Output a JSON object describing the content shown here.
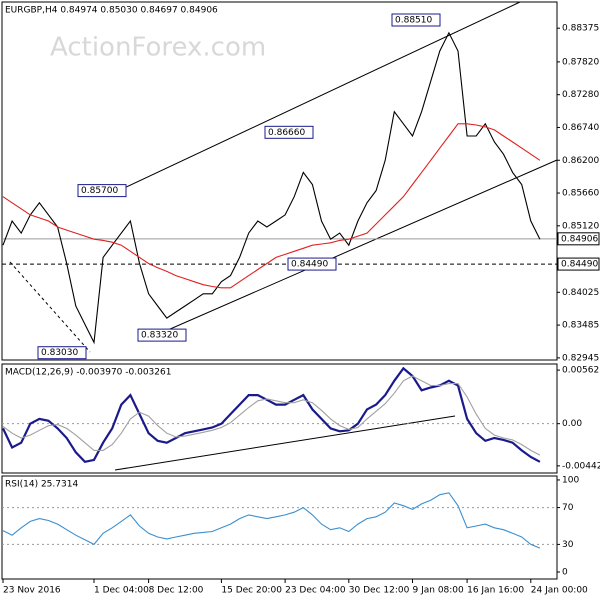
{
  "chart_data": [
    {
      "type": "line",
      "title": "EURGBP,H4  0.84974 0.85030 0.84697 0.84906",
      "watermark": "ActionForex.com",
      "series": [
        {
          "color": "#000000",
          "values": [
            0.848,
            0.852,
            0.85,
            0.853,
            0.855,
            0.853,
            0.851,
            0.845,
            0.838,
            0.835,
            0.832,
            0.846,
            0.848,
            0.85,
            0.852,
            0.845,
            0.84,
            0.838,
            0.836,
            0.837,
            0.838,
            0.839,
            0.84,
            0.84,
            0.842,
            0.843,
            0.846,
            0.85,
            0.852,
            0.851,
            0.852,
            0.853,
            0.856,
            0.86,
            0.858,
            0.852,
            0.849,
            0.85,
            0.848,
            0.852,
            0.855,
            0.857,
            0.862,
            0.87,
            0.868,
            0.866,
            0.87,
            0.875,
            0.88,
            0.883,
            0.88,
            0.866,
            0.866,
            0.868,
            0.865,
            0.863,
            0.86,
            0.858,
            0.852,
            0.849
          ]
        },
        {
          "color": "#e02020",
          "values": [
            0.856,
            0.855,
            0.854,
            0.853,
            0.8525,
            0.852,
            0.851,
            0.8505,
            0.85,
            0.8495,
            0.849,
            0.8488,
            0.8485,
            0.848,
            0.847,
            0.846,
            0.845,
            0.8443,
            0.8437,
            0.843,
            0.8425,
            0.842,
            0.8415,
            0.8412,
            0.841,
            0.841,
            0.842,
            0.843,
            0.844,
            0.845,
            0.846,
            0.8465,
            0.847,
            0.8475,
            0.848,
            0.8482,
            0.8484,
            0.8488,
            0.849,
            0.8495,
            0.85,
            0.8515,
            0.853,
            0.8545,
            0.856,
            0.858,
            0.86,
            0.862,
            0.864,
            0.866,
            0.868,
            0.868,
            0.8678,
            0.8675,
            0.867,
            0.866,
            0.865,
            0.864,
            0.863,
            0.862
          ]
        }
      ],
      "ylim": [
        0.8291,
        0.8879
      ],
      "yticks": [
        0.88375,
        {
          "value": 0.8782,
          "label": "0.87820"
        },
        {
          "value": 0.8728,
          "label": "0.87280"
        },
        {
          "value": 0.8674,
          "label": "0.86740"
        },
        {
          "value": 0.862,
          "label": "0.86200"
        },
        {
          "value": 0.8566,
          "label": "0.85660"
        },
        {
          "value": 0.8512,
          "label": "0.85120"
        },
        0.84025,
        0.83485,
        0.82945
      ],
      "hlines": [
        {
          "value": 0.84906,
          "label": "0.84906"
        },
        {
          "value": 0.8449,
          "label": "0.84490"
        }
      ],
      "annotations": [
        {
          "value": 0.857,
          "label": "0.85700"
        },
        {
          "value": 0.8666,
          "label": "0.86660"
        },
        {
          "value": 0.8332,
          "label": "0.83320"
        },
        {
          "value": 0.8449,
          "label": "0.84490"
        },
        {
          "value": 0.8851,
          "label": "0.88510"
        },
        {
          "value": 0.8303,
          "label": "0.83030"
        }
      ]
    },
    {
      "type": "line",
      "title": "MACD(12,26,9) -0.003970 -0.003261",
      "series": [
        {
          "color": "#1a1a8c",
          "values": [
            -0.0005,
            -0.0025,
            -0.002,
            0.0,
            0.0005,
            0.0003,
            -0.0005,
            -0.0015,
            -0.003,
            -0.004,
            -0.0038,
            -0.002,
            -0.0005,
            0.002,
            0.003,
            0.001,
            -0.001,
            -0.0018,
            -0.002,
            -0.0015,
            -0.001,
            -0.0008,
            -0.0006,
            -0.0004,
            0.0,
            0.001,
            0.002,
            0.003,
            0.003,
            0.0025,
            0.002,
            0.002,
            0.0025,
            0.003,
            0.0015,
            0.0005,
            -0.0005,
            -0.0008,
            -0.0007,
            0.0,
            0.0015,
            0.002,
            0.003,
            0.0045,
            0.0058,
            0.005,
            0.0035,
            0.0038,
            0.004,
            0.0045,
            0.004,
            0.0005,
            -0.001,
            -0.0018,
            -0.0015,
            -0.0017,
            -0.002,
            -0.0028,
            -0.0035,
            -0.004
          ]
        },
        {
          "color": "#a0a0a0",
          "values": [
            -0.0003,
            -0.001,
            -0.0015,
            -0.0012,
            -0.0007,
            -0.0002,
            -0.0001,
            -0.0005,
            -0.0012,
            -0.002,
            -0.0028,
            -0.0028,
            -0.0022,
            -0.001,
            0.0005,
            0.0012,
            0.0008,
            -0.0002,
            -0.001,
            -0.0014,
            -0.0013,
            -0.0011,
            -0.0009,
            -0.0007,
            -0.0004,
            0.0001,
            0.0009,
            0.0017,
            0.0024,
            0.0026,
            0.0024,
            0.0022,
            0.0022,
            0.0025,
            0.0022,
            0.0014,
            0.0005,
            -0.0002,
            -0.0006,
            -0.0004,
            0.0005,
            0.0013,
            0.0021,
            0.0032,
            0.0045,
            0.005,
            0.0045,
            0.004,
            0.004,
            0.0042,
            0.0042,
            0.0028,
            0.001,
            -0.0005,
            -0.0012,
            -0.0015,
            -0.0017,
            -0.0022,
            -0.0028,
            -0.0033
          ]
        }
      ],
      "ylim": [
        -0.005174,
        0.00626
      ],
      "yticks": [
        0.00562,
        {
          "value": 0,
          "label": "0.00"
        },
        -0.004426
      ]
    },
    {
      "type": "line",
      "title": "RSI(14) 25.7314",
      "series": [
        {
          "color": "#3a8fd0",
          "values": [
            45,
            40,
            48,
            55,
            58,
            56,
            52,
            46,
            40,
            35,
            30,
            42,
            48,
            55,
            62,
            50,
            42,
            38,
            36,
            38,
            40,
            42,
            43,
            44,
            48,
            52,
            58,
            62,
            60,
            58,
            60,
            62,
            65,
            70,
            62,
            52,
            46,
            48,
            44,
            52,
            58,
            60,
            65,
            75,
            72,
            68,
            74,
            78,
            84,
            86,
            72,
            48,
            50,
            52,
            48,
            46,
            42,
            38,
            30,
            26
          ]
        }
      ],
      "ylim": [
        -7.6,
        104.3
      ],
      "yticks": [
        100,
        70,
        30,
        0
      ],
      "categories": [
        "23 Nov 2016",
        null,
        null,
        null,
        null,
        null,
        null,
        null,
        null,
        null,
        "1 Dec 04:00",
        null,
        null,
        null,
        null,
        null,
        "8 Dec 12:00",
        null,
        null,
        null,
        null,
        null,
        null,
        null,
        "15 Dec 20:00",
        null,
        null,
        null,
        null,
        null,
        null,
        "23 Dec 04:00",
        null,
        null,
        null,
        null,
        null,
        null,
        "30 Dec 12:00",
        null,
        null,
        null,
        null,
        null,
        null,
        "9 Jan 08:00",
        null,
        null,
        null,
        null,
        null,
        "16 Jan 16:00",
        null,
        null,
        null,
        null,
        null,
        null,
        "24 Jan 00:00",
        null
      ]
    }
  ]
}
